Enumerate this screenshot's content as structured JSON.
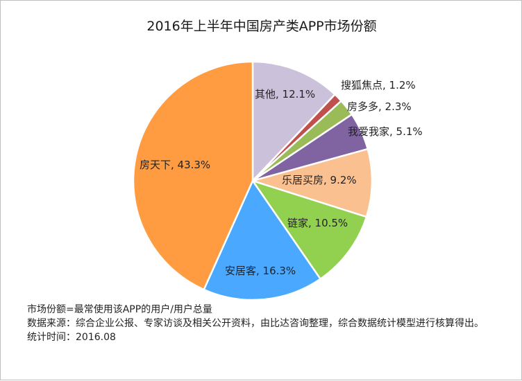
{
  "chart_data": {
    "type": "pie",
    "title": "2016年上半年中国房产类APP市场份额",
    "unit": "%",
    "slices": [
      {
        "name": "其他",
        "value": 12.1,
        "label": "其他, 12.1%",
        "color": "#ccc1da"
      },
      {
        "name": "搜狐焦点",
        "value": 1.2,
        "label": "搜狐焦点, 1.2%",
        "color": "#c0504d"
      },
      {
        "name": "房多多",
        "value": 2.3,
        "label": "房多多, 2.3%",
        "color": "#9bbb59"
      },
      {
        "name": "我爱我家",
        "value": 5.1,
        "label": "我爱我家, 5.1%",
        "color": "#8064a2"
      },
      {
        "name": "乐居买房",
        "value": 9.2,
        "label": "乐居买房, 9.2%",
        "color": "#fac090"
      },
      {
        "name": "链家",
        "value": 10.5,
        "label": "链家, 10.5%",
        "color": "#92d050"
      },
      {
        "name": "安居客",
        "value": 16.3,
        "label": "安居客, 16.3%",
        "color": "#4aa9ff"
      },
      {
        "name": "房天下",
        "value": 43.3,
        "label": "房天下, 43.3%",
        "color": "#ff9c42"
      }
    ]
  },
  "notes": {
    "definition": "市场份额=最常使用该APP的用户/用户总量",
    "source": "数据来源：综合企业公报、专家访谈及相关公开资料，由比达咨询整理，综合数据统计模型进行核算得出。",
    "time": "统计时间：2016.08"
  }
}
